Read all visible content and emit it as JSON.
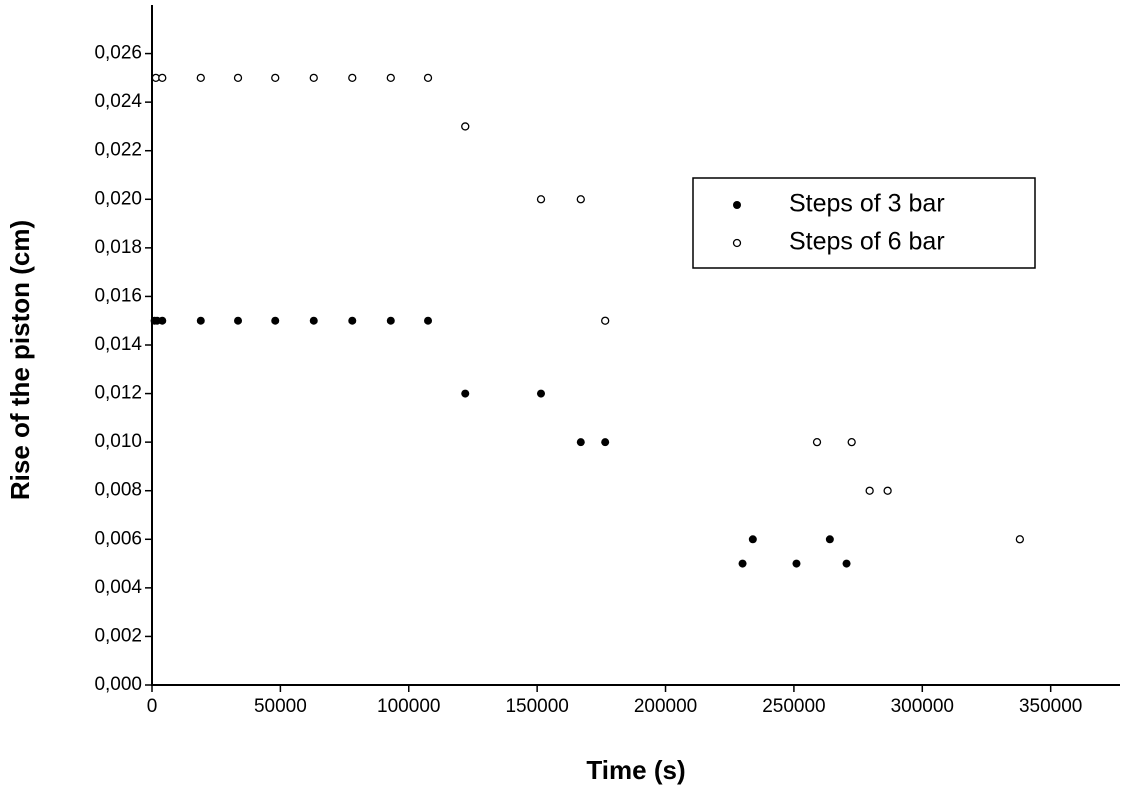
{
  "chart_data": {
    "type": "scatter",
    "xlabel": "Time (s)",
    "ylabel": "Rise of the piston (cm)",
    "xlim": [
      0,
      377000
    ],
    "xticks": [
      0,
      50000,
      100000,
      150000,
      200000,
      250000,
      300000,
      350000
    ],
    "ylim": [
      0,
      0.028
    ],
    "yticks": [
      {
        "value": 0,
        "label": "0,000"
      },
      {
        "value": 0.002,
        "label": "0,002"
      },
      {
        "value": 0.004,
        "label": "0,004"
      },
      {
        "value": 0.006,
        "label": "0,006"
      },
      {
        "value": 0.008,
        "label": "0,008"
      },
      {
        "value": 0.01,
        "label": "0,010"
      },
      {
        "value": 0.012,
        "label": "0,012"
      },
      {
        "value": 0.014,
        "label": "0,014"
      },
      {
        "value": 0.016,
        "label": "0,016"
      },
      {
        "value": 0.018,
        "label": "0,018"
      },
      {
        "value": 0.02,
        "label": "0,020"
      },
      {
        "value": 0.022,
        "label": "0,022"
      },
      {
        "value": 0.024,
        "label": "0,024"
      },
      {
        "value": 0.026,
        "label": "0,026"
      }
    ],
    "series": [
      {
        "name": "Steps of 3 bar",
        "color": "#000000",
        "marker": "filled",
        "x": [
          1000,
          2000,
          4000,
          19000,
          33500,
          48000,
          63000,
          78000,
          93000,
          107500,
          122000,
          151500,
          167000,
          176500,
          230000,
          234000,
          251000,
          264000,
          270500
        ],
        "values": [
          0.015,
          0.015,
          0.015,
          0.015,
          0.015,
          0.015,
          0.015,
          0.015,
          0.015,
          0.015,
          0.012,
          0.012,
          0.01,
          0.01,
          0.005,
          0.006,
          0.005,
          0.006,
          0.005
        ]
      },
      {
        "name": "Steps of 6 bar",
        "color": "#000000",
        "marker": "open",
        "x": [
          1500,
          4000,
          19000,
          33500,
          48000,
          63000,
          78000,
          93000,
          107500,
          122000,
          151500,
          167000,
          176500,
          259000,
          272500,
          279500,
          286500,
          338000
        ],
        "values": [
          0.025,
          0.025,
          0.025,
          0.025,
          0.025,
          0.025,
          0.025,
          0.025,
          0.025,
          0.023,
          0.02,
          0.02,
          0.015,
          0.01,
          0.01,
          0.008,
          0.008,
          0.006
        ]
      }
    ]
  }
}
